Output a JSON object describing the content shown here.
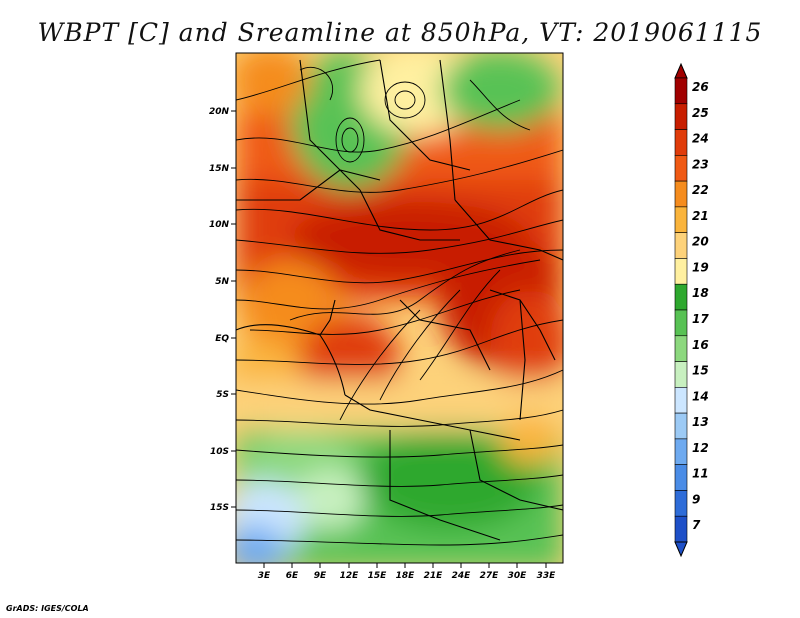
{
  "title": "WBPT [C] and Sreamline at 850hPa, VT: 2019061115",
  "credit": "GrADS: IGES/COLA",
  "map": {
    "lon_ticks": [
      "3E",
      "6E",
      "9E",
      "12E",
      "15E",
      "18E",
      "21E",
      "24E",
      "27E",
      "30E",
      "33E"
    ],
    "lat_ticks": [
      "20N",
      "15N",
      "10N",
      "5N",
      "EQ",
      "5S",
      "10S",
      "15S"
    ]
  },
  "colorbar": {
    "labels": [
      "26",
      "25",
      "24",
      "23",
      "22",
      "21",
      "20",
      "19",
      "18",
      "17",
      "16",
      "15",
      "14",
      "13",
      "12",
      "11",
      "9",
      "7"
    ],
    "colors": [
      "#a00000",
      "#c81e00",
      "#e03c0a",
      "#f05a14",
      "#f58c1e",
      "#fab43c",
      "#fdd27a",
      "#fff0a0",
      "#2ea82e",
      "#58c254",
      "#8cd87e",
      "#c8f0c0",
      "#cce6ff",
      "#9ccaf5",
      "#6eaaf0",
      "#4a8ce6",
      "#2e6cd8",
      "#1e50c8"
    ]
  }
}
